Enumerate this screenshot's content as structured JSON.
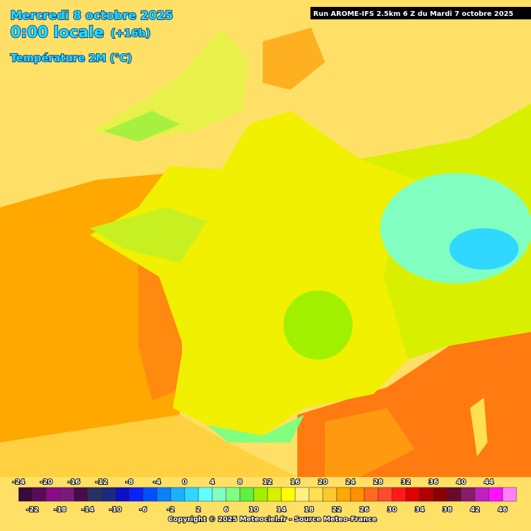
{
  "header": {
    "date": "Mercredi 8 octobre 2025",
    "time": "0:00 locale",
    "lead": "(+16h)",
    "variable": "Température 2M (°C)"
  },
  "run": "Run AROME-IFS 2.5km 6 Z du Mardi 7 octobre 2025",
  "legend": {
    "ticks": [
      -24,
      -22,
      -20,
      -18,
      -16,
      -14,
      -12,
      -10,
      -8,
      -6,
      -4,
      -2,
      0,
      2,
      4,
      6,
      8,
      10,
      12,
      14,
      16,
      18,
      20,
      22,
      24,
      26,
      28,
      30,
      32,
      34,
      36,
      38,
      40,
      42,
      44,
      46
    ],
    "colors": [
      "#3a0a3a",
      "#5a0a5a",
      "#8a0a8a",
      "#7a1a7a",
      "#4a0a4a",
      "#2a3060",
      "#1a2a80",
      "#0a10c8",
      "#0a20ff",
      "#0050ff",
      "#0a80ff",
      "#1ab0ff",
      "#30d8ff",
      "#60ffff",
      "#80ffc0",
      "#80ff80",
      "#60f040",
      "#a0f000",
      "#d8f000",
      "#ffff00",
      "#fff080",
      "#ffe050",
      "#ffc830",
      "#ffa800",
      "#ff9000",
      "#ff6a20",
      "#ff4a30",
      "#ff1a1a",
      "#e00000",
      "#b00000",
      "#8a0000",
      "#6a0a2a",
      "#8a1a6a",
      "#c020c0",
      "#ff10ff",
      "#ff80ff"
    ]
  },
  "footer": "Copyright © 2025 Meteociel.fr - Source Meteo-France"
}
